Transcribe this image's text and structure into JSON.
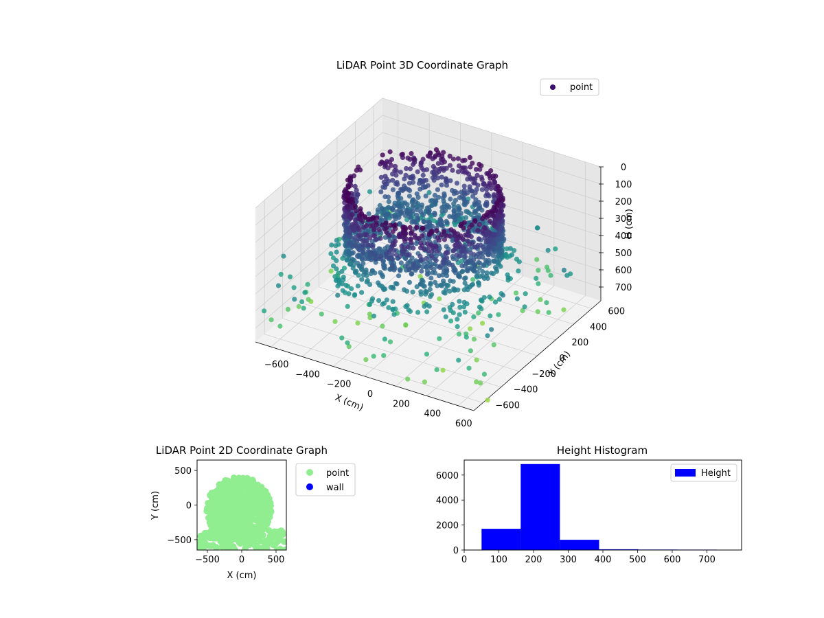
{
  "chart_data": [
    {
      "type": "scatter3d",
      "title": "LiDAR Point 3D Coordinate Graph",
      "xlabel": "X (cm)",
      "ylabel": "Y (cm)",
      "zlabel": "H (cm)",
      "xlim": [
        -700,
        700
      ],
      "ylim": [
        -700,
        700
      ],
      "zlim": [
        0,
        780
      ],
      "z_inverted": true,
      "x_ticks": [
        -600,
        -400,
        -200,
        0,
        200,
        400,
        600
      ],
      "y_ticks": [
        -600,
        -400,
        -200,
        0,
        200,
        400,
        600
      ],
      "z_ticks": [
        0,
        100,
        200,
        300,
        400,
        500,
        600,
        700
      ],
      "colormap": "viridis",
      "legend": {
        "entries": [
          "point"
        ],
        "placement": "top-right",
        "marker_color": "#3b0f70"
      },
      "grid": true,
      "structure": {
        "wall_radius": 430,
        "wall_height_range": [
          20,
          420
        ],
        "floor_height": 300,
        "scattered_height_range": [
          400,
          780
        ]
      }
    },
    {
      "type": "scatter",
      "title": "LiDAR Point 2D Coordinate Graph",
      "xlabel": "X (cm)",
      "ylabel": "Y (cm)",
      "xlim": [
        -650,
        650
      ],
      "ylim": [
        -650,
        650
      ],
      "x_ticks": [
        -500,
        0,
        500
      ],
      "y_ticks": [
        -500,
        0,
        500
      ],
      "series": [
        {
          "name": "point",
          "color": "#90ee90"
        },
        {
          "name": "wall",
          "color": "#0000ff"
        }
      ],
      "legend": {
        "placement": "outside-right"
      }
    },
    {
      "type": "bar",
      "title": "Height Histogram",
      "xlim": [
        0,
        800
      ],
      "ylim": [
        0,
        7200
      ],
      "x_ticks": [
        0,
        100,
        200,
        300,
        400,
        500,
        600,
        700
      ],
      "y_ticks": [
        0,
        2000,
        4000,
        6000
      ],
      "bins": [
        {
          "x0": 50,
          "x1": 163,
          "value": 1700
        },
        {
          "x0": 163,
          "x1": 276,
          "value": 6880
        },
        {
          "x0": 276,
          "x1": 389,
          "value": 820
        },
        {
          "x0": 389,
          "x1": 502,
          "value": 60
        },
        {
          "x0": 502,
          "x1": 615,
          "value": 40
        },
        {
          "x0": 615,
          "x1": 728,
          "value": 35
        }
      ],
      "series": [
        {
          "name": "Height",
          "color": "#0000ff"
        }
      ],
      "legend": {
        "placement": "top-right"
      }
    }
  ]
}
